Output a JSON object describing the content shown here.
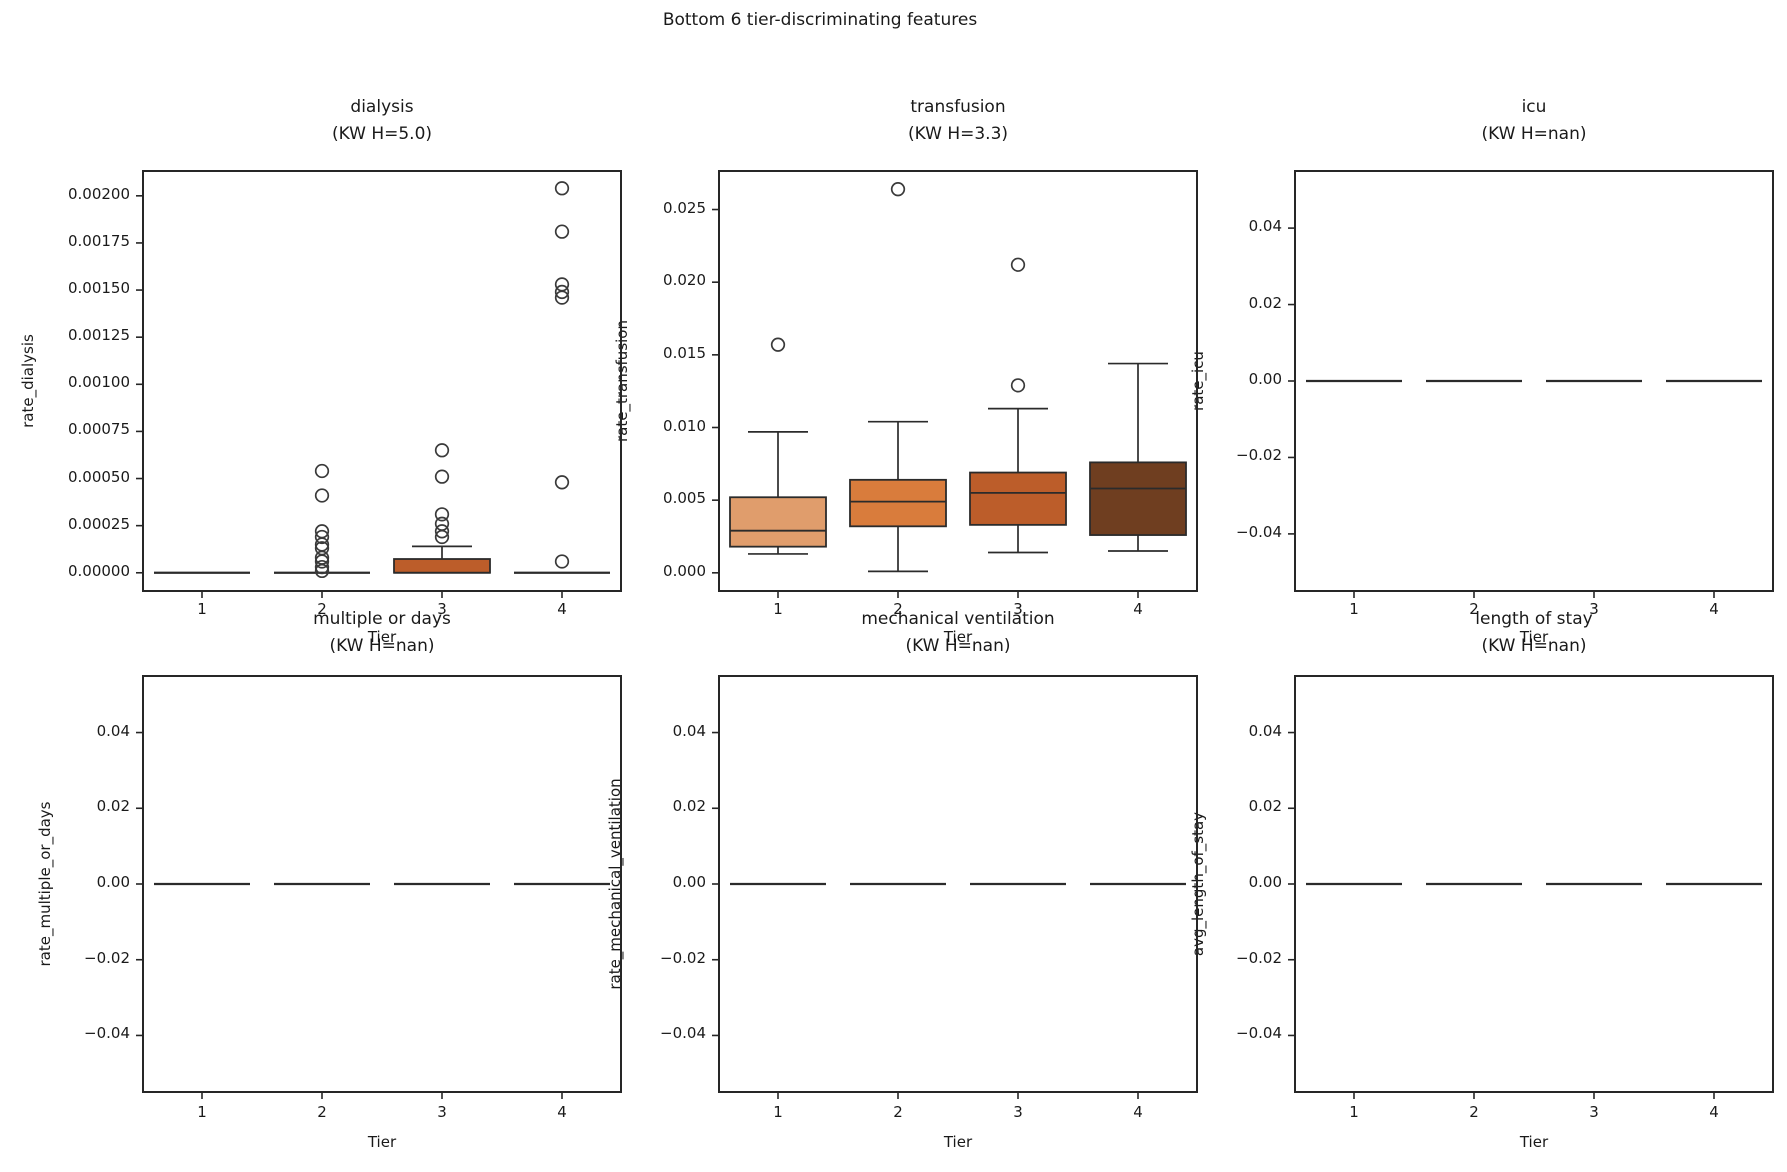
{
  "figure": {
    "suptitle": "Bottom 6 tier-discriminating features",
    "xlabel": "Tier",
    "categories": [
      "1",
      "2",
      "3",
      "4"
    ]
  },
  "colors": {
    "tier_box_fills": [
      "#e09d6c",
      "#d97c3c",
      "#bc5d2a",
      "#6f3e20"
    ],
    "spine": "#262626",
    "line": "#2b2b2b",
    "flier_edge": "#3a3a3a",
    "background": "#ffffff"
  },
  "chart_data": [
    {
      "type": "box",
      "title": "dialysis",
      "subtitle": "(KW H=5.0)",
      "ylabel": "rate_dialysis",
      "xlabel": "Tier",
      "categories": [
        "1",
        "2",
        "3",
        "4"
      ],
      "ylim": [
        -0.000102,
        0.002137
      ],
      "ytick_values": [
        0.0,
        0.00025,
        0.0005,
        0.00075,
        0.001,
        0.00125,
        0.0015,
        0.00175,
        0.002
      ],
      "ytick_labels": [
        "0.00000",
        "0.00025",
        "0.00050",
        "0.00075",
        "0.00100",
        "0.00125",
        "0.00150",
        "0.00175",
        "0.00200"
      ],
      "boxes": [
        {
          "tier": "1",
          "collapsed": true,
          "q1": 0,
          "median": 0,
          "q3": 0,
          "whisker_low": 0,
          "whisker_high": 0,
          "outliers": []
        },
        {
          "tier": "2",
          "collapsed": true,
          "q1": 0,
          "median": 0,
          "q3": 0,
          "whisker_low": 0,
          "whisker_high": 0,
          "outliers": [
            0.00054,
            0.00041,
            0.00022,
            0.00019,
            0.00015,
            0.00013,
            8e-05,
            6e-05,
            3e-05,
            1e-05
          ]
        },
        {
          "tier": "3",
          "collapsed": false,
          "q1": 0,
          "median": 0,
          "q3": 7.3e-05,
          "whisker_low": 0,
          "whisker_high": 0.00014,
          "outliers": [
            0.00065,
            0.00051,
            0.00031,
            0.00026,
            0.00022,
            0.00019
          ]
        },
        {
          "tier": "4",
          "collapsed": true,
          "q1": 0,
          "median": 0,
          "q3": 0,
          "whisker_low": 0,
          "whisker_high": 0,
          "outliers": [
            0.00204,
            0.00181,
            0.00153,
            0.00149,
            0.00146,
            0.00048,
            6e-05
          ]
        }
      ]
    },
    {
      "type": "box",
      "title": "transfusion",
      "subtitle": "(KW H=3.3)",
      "ylabel": "rate_transfusion",
      "xlabel": "Tier",
      "categories": [
        "1",
        "2",
        "3",
        "4"
      ],
      "ylim": [
        -0.00132,
        0.02772
      ],
      "ytick_values": [
        0.0,
        0.005,
        0.01,
        0.015,
        0.02,
        0.025
      ],
      "ytick_labels": [
        "0.000",
        "0.005",
        "0.010",
        "0.015",
        "0.020",
        "0.025"
      ],
      "boxes": [
        {
          "tier": "1",
          "collapsed": false,
          "q1": 0.0018,
          "median": 0.0029,
          "q3": 0.0052,
          "whisker_low": 0.0013,
          "whisker_high": 0.0097,
          "outliers": [
            0.0157
          ]
        },
        {
          "tier": "2",
          "collapsed": false,
          "q1": 0.0032,
          "median": 0.0049,
          "q3": 0.0064,
          "whisker_low": 0.0001,
          "whisker_high": 0.0104,
          "outliers": [
            0.0264
          ]
        },
        {
          "tier": "3",
          "collapsed": false,
          "q1": 0.0033,
          "median": 0.0055,
          "q3": 0.0069,
          "whisker_low": 0.0014,
          "whisker_high": 0.0113,
          "outliers": [
            0.0129,
            0.0212
          ]
        },
        {
          "tier": "4",
          "collapsed": false,
          "q1": 0.0026,
          "median": 0.0058,
          "q3": 0.0076,
          "whisker_low": 0.0015,
          "whisker_high": 0.0144,
          "outliers": []
        }
      ]
    },
    {
      "type": "box",
      "title": "icu",
      "subtitle": "(KW H=nan)",
      "ylabel": "rate_icu",
      "xlabel": "Tier",
      "categories": [
        "1",
        "2",
        "3",
        "4"
      ],
      "ylim": [
        -0.0552,
        0.0552
      ],
      "ytick_values": [
        -0.04,
        -0.02,
        0.0,
        0.02,
        0.04
      ],
      "ytick_labels": [
        "−0.04",
        "−0.02",
        "0.00",
        "0.02",
        "0.04"
      ],
      "boxes": [
        {
          "tier": "1",
          "collapsed": true,
          "q1": 0,
          "median": 0,
          "q3": 0,
          "whisker_low": 0,
          "whisker_high": 0,
          "outliers": []
        },
        {
          "tier": "2",
          "collapsed": true,
          "q1": 0,
          "median": 0,
          "q3": 0,
          "whisker_low": 0,
          "whisker_high": 0,
          "outliers": []
        },
        {
          "tier": "3",
          "collapsed": true,
          "q1": 0,
          "median": 0,
          "q3": 0,
          "whisker_low": 0,
          "whisker_high": 0,
          "outliers": []
        },
        {
          "tier": "4",
          "collapsed": true,
          "q1": 0,
          "median": 0,
          "q3": 0,
          "whisker_low": 0,
          "whisker_high": 0,
          "outliers": []
        }
      ]
    },
    {
      "type": "box",
      "title": "multiple or days",
      "subtitle": "(KW H=nan)",
      "ylabel": "rate_multiple_or_days",
      "xlabel": "Tier",
      "categories": [
        "1",
        "2",
        "3",
        "4"
      ],
      "ylim": [
        -0.0552,
        0.0552
      ],
      "ytick_values": [
        -0.04,
        -0.02,
        0.0,
        0.02,
        0.04
      ],
      "ytick_labels": [
        "−0.04",
        "−0.02",
        "0.00",
        "0.02",
        "0.04"
      ],
      "boxes": [
        {
          "tier": "1",
          "collapsed": true,
          "q1": 0,
          "median": 0,
          "q3": 0,
          "whisker_low": 0,
          "whisker_high": 0,
          "outliers": []
        },
        {
          "tier": "2",
          "collapsed": true,
          "q1": 0,
          "median": 0,
          "q3": 0,
          "whisker_low": 0,
          "whisker_high": 0,
          "outliers": []
        },
        {
          "tier": "3",
          "collapsed": true,
          "q1": 0,
          "median": 0,
          "q3": 0,
          "whisker_low": 0,
          "whisker_high": 0,
          "outliers": []
        },
        {
          "tier": "4",
          "collapsed": true,
          "q1": 0,
          "median": 0,
          "q3": 0,
          "whisker_low": 0,
          "whisker_high": 0,
          "outliers": []
        }
      ]
    },
    {
      "type": "box",
      "title": "mechanical ventilation",
      "subtitle": "(KW H=nan)",
      "ylabel": "rate_mechanical_ventilation",
      "xlabel": "Tier",
      "categories": [
        "1",
        "2",
        "3",
        "4"
      ],
      "ylim": [
        -0.0552,
        0.0552
      ],
      "ytick_values": [
        -0.04,
        -0.02,
        0.0,
        0.02,
        0.04
      ],
      "ytick_labels": [
        "−0.04",
        "−0.02",
        "0.00",
        "0.02",
        "0.04"
      ],
      "boxes": [
        {
          "tier": "1",
          "collapsed": true,
          "q1": 0,
          "median": 0,
          "q3": 0,
          "whisker_low": 0,
          "whisker_high": 0,
          "outliers": []
        },
        {
          "tier": "2",
          "collapsed": true,
          "q1": 0,
          "median": 0,
          "q3": 0,
          "whisker_low": 0,
          "whisker_high": 0,
          "outliers": []
        },
        {
          "tier": "3",
          "collapsed": true,
          "q1": 0,
          "median": 0,
          "q3": 0,
          "whisker_low": 0,
          "whisker_high": 0,
          "outliers": []
        },
        {
          "tier": "4",
          "collapsed": true,
          "q1": 0,
          "median": 0,
          "q3": 0,
          "whisker_low": 0,
          "whisker_high": 0,
          "outliers": []
        }
      ]
    },
    {
      "type": "box",
      "title": "length of stay",
      "subtitle": "(KW H=nan)",
      "ylabel": "avg_length_of_stay",
      "xlabel": "Tier",
      "categories": [
        "1",
        "2",
        "3",
        "4"
      ],
      "ylim": [
        -0.0552,
        0.0552
      ],
      "ytick_values": [
        -0.04,
        -0.02,
        0.0,
        0.02,
        0.04
      ],
      "ytick_labels": [
        "−0.04",
        "−0.02",
        "0.00",
        "0.02",
        "0.04"
      ],
      "boxes": [
        {
          "tier": "1",
          "collapsed": true,
          "q1": 0,
          "median": 0,
          "q3": 0,
          "whisker_low": 0,
          "whisker_high": 0,
          "outliers": []
        },
        {
          "tier": "2",
          "collapsed": true,
          "q1": 0,
          "median": 0,
          "q3": 0,
          "whisker_low": 0,
          "whisker_high": 0,
          "outliers": []
        },
        {
          "tier": "3",
          "collapsed": true,
          "q1": 0,
          "median": 0,
          "q3": 0,
          "whisker_low": 0,
          "whisker_high": 0,
          "outliers": []
        },
        {
          "tier": "4",
          "collapsed": true,
          "q1": 0,
          "median": 0,
          "q3": 0,
          "whisker_low": 0,
          "whisker_high": 0,
          "outliers": []
        }
      ]
    }
  ]
}
